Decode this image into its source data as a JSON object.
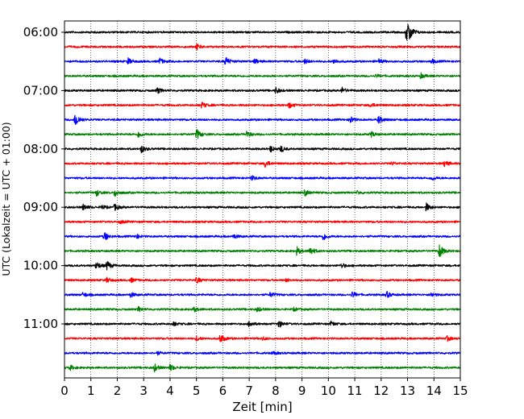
{
  "chart_data": {
    "type": "line",
    "xlabel": "Zeit  [min]",
    "ylabel": "UTC (Lokalzeit = UTC + 01:00)",
    "xlim": [
      0,
      15
    ],
    "x_ticks": [
      "0",
      "1",
      "2",
      "3",
      "4",
      "5",
      "6",
      "7",
      "8",
      "9",
      "10",
      "11",
      "12",
      "13",
      "14",
      "15"
    ],
    "y_ticks": [
      "06:00",
      "07:00",
      "08:00",
      "09:00",
      "10:00",
      "11:00"
    ],
    "grid": "vertical dotted",
    "trace_interval_min": 15,
    "colors": [
      "#000000",
      "#ff0000",
      "#0000ff",
      "#008000"
    ],
    "traces": [
      {
        "start": "06:00",
        "color": "#000000",
        "events": [
          [
            12.95,
            12
          ],
          [
            13.05,
            8
          ]
        ]
      },
      {
        "start": "06:15",
        "color": "#ff0000",
        "events": [
          [
            5.0,
            4
          ]
        ]
      },
      {
        "start": "06:30",
        "color": "#0000ff",
        "events": [
          [
            2.4,
            4
          ],
          [
            3.6,
            4
          ],
          [
            6.1,
            6
          ],
          [
            7.2,
            3
          ],
          [
            9.1,
            3
          ],
          [
            10.2,
            3
          ],
          [
            11.9,
            3
          ],
          [
            13.9,
            3
          ]
        ]
      },
      {
        "start": "06:45",
        "color": "#008000",
        "events": [
          [
            11.8,
            2
          ],
          [
            13.5,
            3
          ]
        ]
      },
      {
        "start": "07:00",
        "color": "#000000",
        "events": [
          [
            3.5,
            4
          ],
          [
            8.0,
            4
          ],
          [
            10.5,
            4
          ]
        ]
      },
      {
        "start": "07:15",
        "color": "#ff0000",
        "events": [
          [
            5.2,
            4
          ],
          [
            8.5,
            4
          ],
          [
            11.6,
            3
          ]
        ]
      },
      {
        "start": "07:30",
        "color": "#0000ff",
        "events": [
          [
            0.4,
            10
          ],
          [
            10.8,
            5
          ],
          [
            11.9,
            5
          ]
        ]
      },
      {
        "start": "07:45",
        "color": "#008000",
        "events": [
          [
            2.8,
            4
          ],
          [
            5.0,
            7
          ],
          [
            6.9,
            4
          ],
          [
            11.6,
            4
          ]
        ]
      },
      {
        "start": "08:00",
        "color": "#000000",
        "events": [
          [
            2.9,
            5
          ],
          [
            7.8,
            4
          ],
          [
            8.2,
            4
          ]
        ]
      },
      {
        "start": "08:15",
        "color": "#ff0000",
        "events": [
          [
            7.6,
            5
          ],
          [
            12.4,
            2
          ],
          [
            14.4,
            4
          ]
        ]
      },
      {
        "start": "08:30",
        "color": "#0000ff",
        "events": [
          [
            7.1,
            3
          ],
          [
            13.9,
            3
          ]
        ]
      },
      {
        "start": "08:45",
        "color": "#008000",
        "events": [
          [
            1.2,
            4
          ],
          [
            1.9,
            5
          ],
          [
            9.1,
            4
          ],
          [
            11.1,
            2
          ]
        ]
      },
      {
        "start": "09:00",
        "color": "#000000",
        "events": [
          [
            0.7,
            4
          ],
          [
            1.4,
            3
          ],
          [
            1.9,
            4
          ],
          [
            13.7,
            5
          ]
        ]
      },
      {
        "start": "09:15",
        "color": "#ff0000",
        "events": [
          [
            2.1,
            2
          ]
        ]
      },
      {
        "start": "09:30",
        "color": "#0000ff",
        "events": [
          [
            1.5,
            6
          ],
          [
            2.7,
            3
          ],
          [
            6.4,
            3
          ],
          [
            9.8,
            5
          ]
        ]
      },
      {
        "start": "09:45",
        "color": "#008000",
        "events": [
          [
            8.8,
            5
          ],
          [
            9.3,
            6
          ],
          [
            14.2,
            9
          ]
        ]
      },
      {
        "start": "10:00",
        "color": "#000000",
        "events": [
          [
            1.2,
            5
          ],
          [
            1.6,
            6
          ],
          [
            10.5,
            3
          ]
        ]
      },
      {
        "start": "10:15",
        "color": "#ff0000",
        "events": [
          [
            1.6,
            3
          ],
          [
            2.5,
            3
          ],
          [
            5.0,
            4
          ],
          [
            8.4,
            2
          ]
        ]
      },
      {
        "start": "10:30",
        "color": "#0000ff",
        "events": [
          [
            0.7,
            3
          ],
          [
            2.5,
            3
          ],
          [
            7.8,
            3
          ],
          [
            10.9,
            4
          ],
          [
            12.2,
            4
          ],
          [
            13.9,
            3
          ]
        ]
      },
      {
        "start": "10:45",
        "color": "#008000",
        "events": [
          [
            2.8,
            3
          ],
          [
            4.9,
            3
          ],
          [
            7.3,
            3
          ],
          [
            8.7,
            2
          ]
        ]
      },
      {
        "start": "11:00",
        "color": "#000000",
        "events": [
          [
            4.1,
            3
          ],
          [
            7.0,
            4
          ],
          [
            8.1,
            5
          ],
          [
            10.1,
            3
          ]
        ]
      },
      {
        "start": "11:15",
        "color": "#ff0000",
        "events": [
          [
            5.0,
            3
          ],
          [
            5.9,
            6
          ],
          [
            7.5,
            2
          ],
          [
            14.5,
            3
          ]
        ]
      },
      {
        "start": "11:30",
        "color": "#0000ff",
        "events": [
          [
            3.5,
            2
          ],
          [
            7.9,
            2
          ]
        ]
      },
      {
        "start": "11:45",
        "color": "#008000",
        "events": [
          [
            0.2,
            3
          ],
          [
            3.4,
            5
          ],
          [
            4.0,
            4
          ]
        ]
      }
    ]
  }
}
